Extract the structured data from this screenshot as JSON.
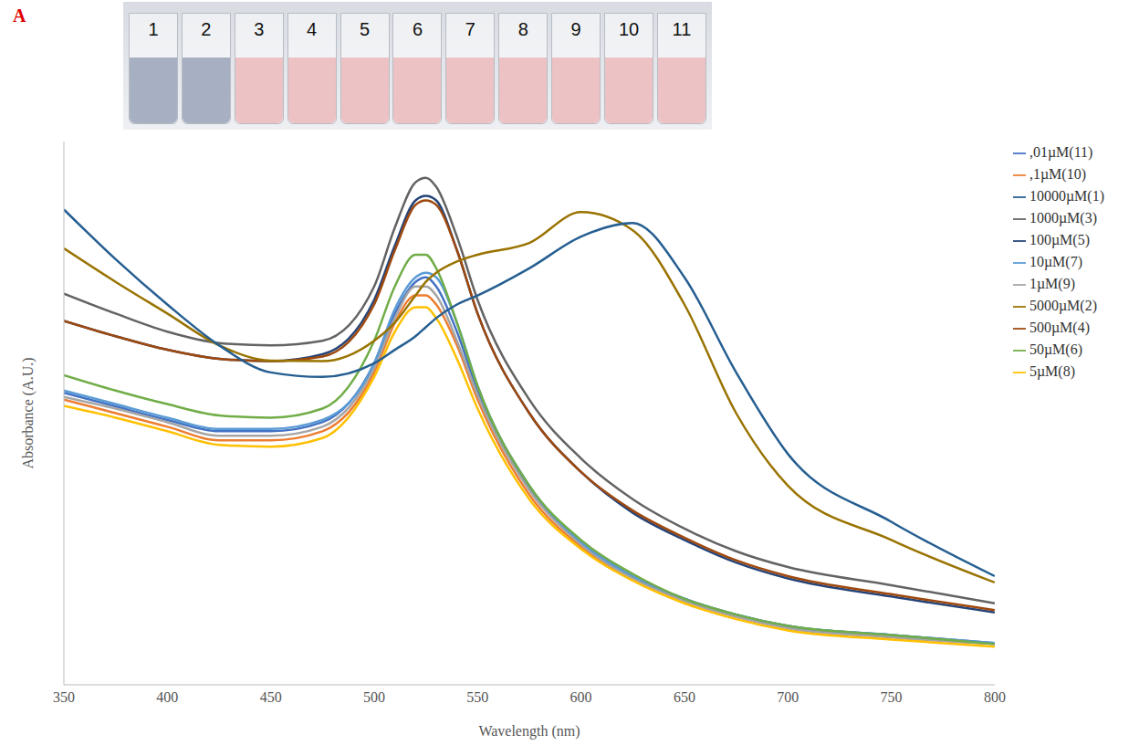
{
  "chart_data": {
    "type": "line",
    "panel_label": "A",
    "annotations": [
      "1",
      "2",
      "3",
      "4",
      "5",
      "6",
      "7",
      "8",
      "9",
      "10",
      "11"
    ],
    "x_label": "Wavelength (nm)",
    "y_label": "Absorbance (A.U.)",
    "x": [
      350,
      375,
      400,
      425,
      450,
      475,
      500,
      510,
      520,
      525,
      530,
      540,
      550,
      575,
      600,
      625,
      650,
      675,
      700,
      750,
      800
    ],
    "xlim": [
      350,
      800
    ],
    "xticks": [
      350,
      400,
      450,
      500,
      550,
      600,
      650,
      700,
      750,
      800
    ],
    "ylim": [
      0,
      1.2
    ],
    "yticks": [],
    "tick_labels": "x",
    "grid": false,
    "legend": "right",
    "series": [
      {
        "name": ",01µM(11)",
        "color": "#4472c4",
        "values": [
          0.645,
          0.615,
          0.585,
          0.56,
          0.56,
          0.58,
          0.71,
          0.82,
          0.89,
          0.9,
          0.88,
          0.78,
          0.65,
          0.435,
          0.315,
          0.24,
          0.19,
          0.155,
          0.13,
          0.11,
          0.092
        ]
      },
      {
        "name": ",1µM(10)",
        "color": "#ed7d31",
        "values": [
          0.63,
          0.6,
          0.57,
          0.54,
          0.54,
          0.56,
          0.69,
          0.8,
          0.86,
          0.86,
          0.84,
          0.75,
          0.63,
          0.42,
          0.305,
          0.235,
          0.185,
          0.15,
          0.125,
          0.105,
          0.09
        ]
      },
      {
        "name": "1µM(9)",
        "color": "#a5a5a5",
        "values": [
          0.636,
          0.61,
          0.58,
          0.55,
          0.55,
          0.57,
          0.7,
          0.81,
          0.88,
          0.88,
          0.86,
          0.76,
          0.64,
          0.43,
          0.31,
          0.235,
          0.185,
          0.15,
          0.125,
          0.105,
          0.09
        ]
      },
      {
        "name": "5µM(8)",
        "color": "#ffc000",
        "values": [
          0.616,
          0.59,
          0.56,
          0.53,
          0.526,
          0.545,
          0.68,
          0.78,
          0.834,
          0.834,
          0.81,
          0.72,
          0.61,
          0.41,
          0.3,
          0.23,
          0.18,
          0.145,
          0.12,
          0.1,
          0.084
        ]
      },
      {
        "name": "10µM(7)",
        "color": "#5b9bd5",
        "values": [
          0.65,
          0.62,
          0.59,
          0.565,
          0.565,
          0.585,
          0.71,
          0.83,
          0.9,
          0.91,
          0.9,
          0.8,
          0.66,
          0.44,
          0.315,
          0.24,
          0.19,
          0.155,
          0.13,
          0.11,
          0.092
        ]
      },
      {
        "name": "50µM(6)",
        "color": "#70ad47",
        "values": [
          0.684,
          0.65,
          0.62,
          0.595,
          0.59,
          0.61,
          0.76,
          0.88,
          0.95,
          0.95,
          0.92,
          0.8,
          0.66,
          0.44,
          0.32,
          0.245,
          0.19,
          0.155,
          0.13,
          0.11,
          0.09
        ]
      },
      {
        "name": "100µM(5)",
        "color": "#264478",
        "values": [
          0.804,
          0.77,
          0.74,
          0.72,
          0.715,
          0.73,
          0.85,
          0.97,
          1.07,
          1.08,
          1.07,
          0.96,
          0.82,
          0.6,
          0.47,
          0.38,
          0.32,
          0.27,
          0.235,
          0.195,
          0.16
        ]
      },
      {
        "name": "500µM(4)",
        "color": "#9e480e",
        "values": [
          0.804,
          0.77,
          0.74,
          0.72,
          0.715,
          0.725,
          0.84,
          0.96,
          1.06,
          1.07,
          1.06,
          0.96,
          0.82,
          0.6,
          0.47,
          0.385,
          0.325,
          0.275,
          0.24,
          0.2,
          0.165
        ]
      },
      {
        "name": "1000µM(3)",
        "color": "#636363",
        "values": [
          0.864,
          0.82,
          0.78,
          0.755,
          0.75,
          0.76,
          0.88,
          1.01,
          1.11,
          1.12,
          1.1,
          0.99,
          0.85,
          0.63,
          0.5,
          0.41,
          0.345,
          0.295,
          0.26,
          0.22,
          0.18
        ]
      },
      {
        "name": "5000µM(2)",
        "color": "#997300",
        "values": [
          0.964,
          0.89,
          0.82,
          0.75,
          0.716,
          0.715,
          0.76,
          0.8,
          0.86,
          0.89,
          0.91,
          0.935,
          0.95,
          0.976,
          1.044,
          1.004,
          0.84,
          0.6,
          0.44,
          0.32,
          0.226
        ]
      },
      {
        "name": "10000µM(1)",
        "color": "#255e91",
        "values": [
          1.05,
          0.94,
          0.84,
          0.75,
          0.69,
          0.68,
          0.71,
          0.74,
          0.77,
          0.79,
          0.81,
          0.84,
          0.86,
          0.92,
          0.99,
          1.02,
          0.9,
          0.69,
          0.51,
          0.36,
          0.24
        ]
      }
    ]
  }
}
